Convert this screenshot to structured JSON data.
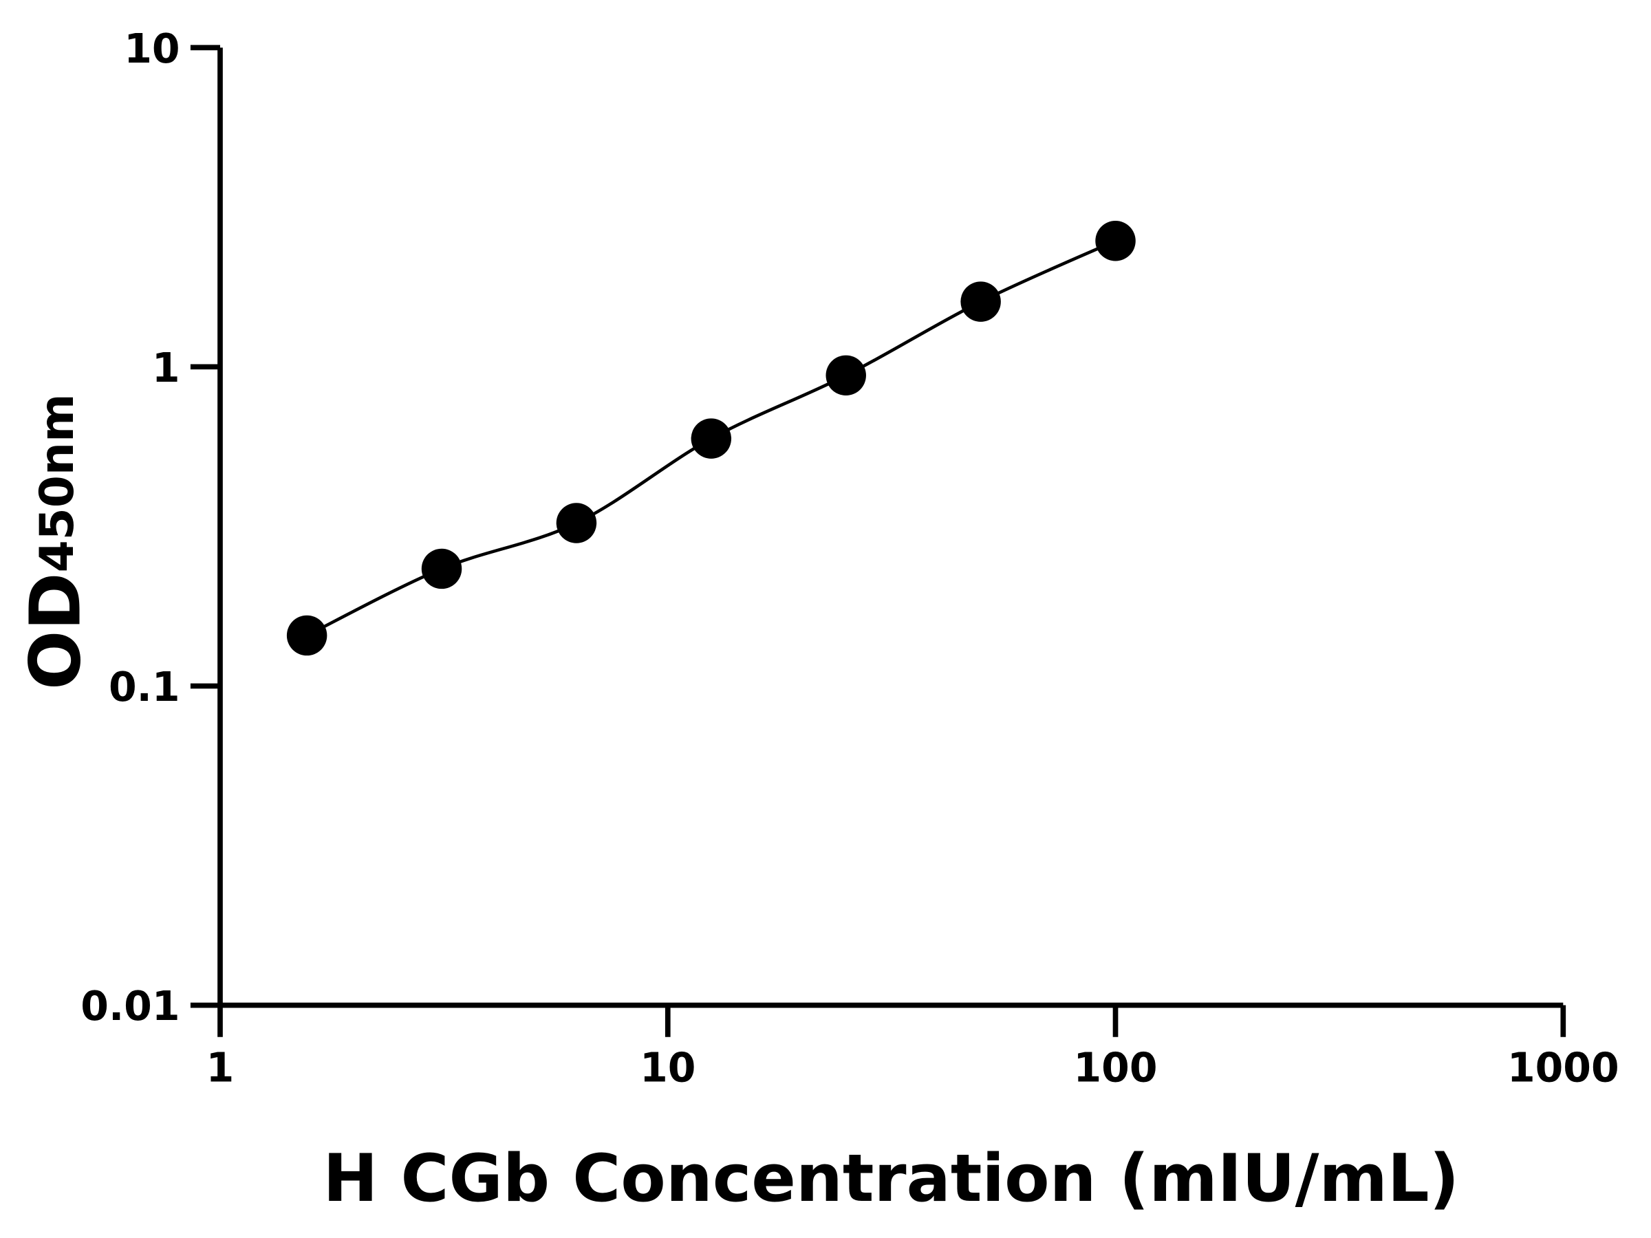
{
  "chart_data": {
    "type": "scatter",
    "xlabel": "H CGb Concentration (mIU/mL)",
    "ylabel": "OD",
    "ylabel_subscript": "450nm",
    "x_scale": "log",
    "y_scale": "log",
    "xlim": [
      1,
      1000
    ],
    "ylim": [
      0.01,
      10
    ],
    "x_ticks": [
      "1",
      "10",
      "100",
      "1000"
    ],
    "y_ticks": [
      "0.01",
      "0.1",
      "1",
      "10"
    ],
    "grid": false,
    "fit_curve": true,
    "series": [
      {
        "x": [
          1.5625,
          3.125,
          6.25,
          12.5,
          25,
          50,
          100
        ],
        "y": [
          0.144,
          0.233,
          0.324,
          0.596,
          0.94,
          1.6,
          2.48
        ]
      }
    ],
    "colors": {
      "marker": "#000000",
      "line": "#000000"
    }
  }
}
